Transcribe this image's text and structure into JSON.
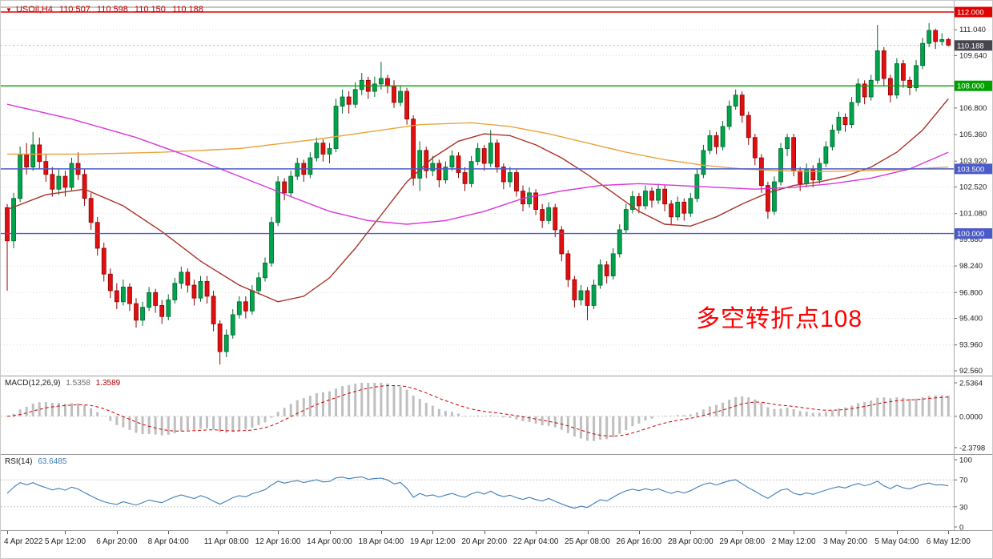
{
  "header": {
    "marker": "▼",
    "symbol": "USOil,H4",
    "open": "110.507",
    "high": "110.598",
    "low": "110.150",
    "close": "110.188",
    "text_color": "#c00000"
  },
  "annotation": {
    "text": "多空转折点108",
    "color": "#ff0000"
  },
  "panels": {
    "macd": {
      "title": "MACD(12,26,9)",
      "value": "1.5358",
      "signal_value": "1.3589",
      "scale": {
        "max": "2.5364",
        "zero": "0.0000",
        "min": "-2.3798"
      }
    },
    "rsi": {
      "title": "RSI(14)",
      "value": "63.6485",
      "levels": [
        "100",
        "70",
        "30",
        "0"
      ]
    }
  },
  "chart_data": {
    "type": "candlestick",
    "symbol": "USOil",
    "timeframe": "H4",
    "title": "USOil H4 candlestick chart with MACD and RSI",
    "price_axis": {
      "min": 92.56,
      "max": 112.0,
      "ticks": [
        "111.040",
        "109.640",
        "106.800",
        "105.360",
        "103.920",
        "102.520",
        "101.080",
        "99.680",
        "98.240",
        "96.800",
        "95.400",
        "93.960",
        "92.560"
      ]
    },
    "hlines": [
      {
        "price": 112.0,
        "label": "112.000",
        "color": "#E00000"
      },
      {
        "price": 108.0,
        "label": "108.000",
        "color": "#00A000"
      },
      {
        "price": 103.5,
        "label": "103.500",
        "color": "#4A5AC8"
      },
      {
        "price": 100.0,
        "label": "100.000",
        "color": "#4A5AC8"
      }
    ],
    "current_price": {
      "value": 110.188,
      "label": "110.188",
      "badge_color": "#46464E"
    },
    "colors": {
      "up": "#00A44A",
      "up_border": "#00662E",
      "down": "#E01010",
      "down_border": "#8F0000",
      "macd_hist": "#BFBFBF",
      "macd_signal": "#CC0000",
      "rsi_line": "#3E7DB8",
      "grid": "#DCDCDC"
    },
    "candles": [
      [
        101.4,
        101.6,
        96.9,
        99.6
      ],
      [
        99.6,
        102.2,
        99.2,
        101.9
      ],
      [
        101.9,
        104.7,
        101.7,
        104.3
      ],
      [
        104.3,
        104.9,
        103.2,
        103.6
      ],
      [
        103.6,
        105.5,
        103.4,
        104.8
      ],
      [
        104.8,
        105.2,
        103.5,
        103.9
      ],
      [
        103.9,
        104.3,
        102.8,
        103.2
      ],
      [
        103.2,
        103.6,
        102.0,
        102.4
      ],
      [
        102.4,
        103.5,
        102.1,
        103.1
      ],
      [
        103.1,
        103.4,
        102.0,
        102.5
      ],
      [
        102.5,
        104.1,
        102.3,
        103.8
      ],
      [
        103.8,
        104.4,
        102.9,
        103.2
      ],
      [
        103.2,
        103.5,
        101.5,
        101.9
      ],
      [
        101.9,
        102.2,
        100.2,
        100.6
      ],
      [
        100.6,
        100.9,
        98.8,
        99.2
      ],
      [
        99.2,
        99.5,
        97.4,
        97.8
      ],
      [
        97.8,
        98.1,
        96.5,
        96.9
      ],
      [
        96.9,
        97.3,
        95.9,
        96.3
      ],
      [
        96.3,
        97.5,
        96.1,
        97.1
      ],
      [
        97.1,
        97.3,
        95.8,
        96.2
      ],
      [
        96.2,
        96.5,
        94.9,
        95.3
      ],
      [
        95.3,
        96.3,
        95.0,
        96.0
      ],
      [
        96.0,
        97.1,
        95.8,
        96.8
      ],
      [
        96.8,
        97.0,
        95.7,
        96.1
      ],
      [
        96.1,
        96.4,
        95.1,
        95.5
      ],
      [
        95.5,
        96.7,
        95.3,
        96.4
      ],
      [
        96.4,
        97.6,
        96.2,
        97.3
      ],
      [
        97.3,
        98.2,
        97.0,
        97.9
      ],
      [
        97.9,
        98.1,
        96.8,
        97.2
      ],
      [
        97.2,
        97.5,
        96.1,
        96.5
      ],
      [
        96.5,
        97.7,
        96.3,
        97.4
      ],
      [
        97.4,
        97.7,
        96.2,
        96.6
      ],
      [
        96.6,
        96.9,
        94.7,
        95.1
      ],
      [
        95.1,
        95.3,
        92.9,
        93.6
      ],
      [
        93.6,
        94.8,
        93.3,
        94.5
      ],
      [
        94.5,
        95.9,
        94.3,
        95.6
      ],
      [
        95.6,
        96.6,
        95.4,
        96.3
      ],
      [
        96.3,
        96.6,
        95.4,
        95.8
      ],
      [
        95.8,
        97.2,
        95.6,
        96.9
      ],
      [
        96.9,
        97.9,
        96.7,
        97.6
      ],
      [
        97.6,
        98.7,
        97.4,
        98.4
      ],
      [
        98.4,
        100.9,
        98.2,
        100.6
      ],
      [
        100.6,
        103.1,
        100.4,
        102.8
      ],
      [
        102.8,
        103.0,
        101.8,
        102.2
      ],
      [
        102.2,
        103.4,
        102.0,
        103.1
      ],
      [
        103.1,
        104.1,
        102.9,
        103.8
      ],
      [
        103.8,
        104.0,
        102.8,
        103.2
      ],
      [
        103.2,
        104.4,
        103.0,
        104.1
      ],
      [
        104.1,
        105.2,
        103.9,
        104.9
      ],
      [
        104.9,
        105.1,
        103.9,
        104.3
      ],
      [
        104.3,
        104.9,
        103.8,
        104.6
      ],
      [
        104.6,
        107.3,
        104.4,
        106.9
      ],
      [
        106.9,
        107.8,
        106.5,
        107.4
      ],
      [
        107.4,
        107.7,
        106.5,
        107.0
      ],
      [
        107.0,
        108.2,
        106.8,
        107.8
      ],
      [
        107.8,
        108.7,
        107.5,
        108.3
      ],
      [
        108.3,
        108.5,
        107.3,
        107.7
      ],
      [
        107.7,
        108.5,
        107.4,
        108.1
      ],
      [
        108.1,
        109.3,
        107.8,
        108.4
      ],
      [
        108.4,
        108.6,
        107.6,
        108.0
      ],
      [
        108.0,
        108.3,
        106.8,
        107.1
      ],
      [
        107.1,
        108.0,
        106.9,
        107.7
      ],
      [
        107.7,
        107.9,
        105.9,
        106.2
      ],
      [
        106.2,
        106.4,
        102.6,
        103.0
      ],
      [
        103.0,
        105.0,
        102.3,
        104.5
      ],
      [
        104.5,
        104.7,
        103.0,
        103.4
      ],
      [
        103.4,
        104.2,
        103.1,
        103.8
      ],
      [
        103.8,
        104.0,
        102.5,
        102.9
      ],
      [
        102.9,
        103.9,
        102.7,
        103.6
      ],
      [
        103.6,
        104.5,
        103.4,
        104.2
      ],
      [
        104.2,
        104.4,
        103.0,
        103.3
      ],
      [
        103.3,
        103.6,
        102.3,
        102.7
      ],
      [
        102.7,
        104.2,
        102.5,
        103.9
      ],
      [
        103.9,
        104.9,
        103.7,
        104.6
      ],
      [
        104.6,
        104.8,
        103.4,
        103.8
      ],
      [
        103.8,
        105.6,
        103.6,
        104.9
      ],
      [
        104.9,
        105.1,
        103.3,
        103.6
      ],
      [
        103.6,
        103.8,
        102.4,
        102.8
      ],
      [
        102.8,
        103.6,
        102.5,
        103.3
      ],
      [
        103.3,
        103.5,
        102.0,
        102.3
      ],
      [
        102.3,
        102.6,
        101.2,
        101.6
      ],
      [
        101.6,
        102.5,
        101.4,
        102.2
      ],
      [
        102.2,
        102.4,
        101.0,
        101.3
      ],
      [
        101.3,
        101.6,
        100.3,
        100.7
      ],
      [
        100.7,
        101.7,
        100.5,
        101.4
      ],
      [
        101.4,
        101.6,
        99.8,
        100.2
      ],
      [
        100.2,
        100.4,
        98.5,
        98.9
      ],
      [
        98.9,
        99.1,
        97.1,
        97.5
      ],
      [
        97.5,
        97.7,
        96.0,
        96.4
      ],
      [
        96.4,
        97.2,
        96.1,
        96.9
      ],
      [
        96.9,
        97.1,
        95.3,
        96.1
      ],
      [
        96.1,
        97.5,
        95.9,
        97.2
      ],
      [
        97.2,
        98.6,
        97.0,
        98.3
      ],
      [
        98.3,
        98.5,
        97.3,
        97.7
      ],
      [
        97.7,
        99.2,
        97.5,
        98.9
      ],
      [
        98.9,
        100.5,
        98.7,
        100.2
      ],
      [
        100.2,
        101.6,
        100.0,
        101.3
      ],
      [
        101.3,
        102.3,
        101.1,
        102.0
      ],
      [
        102.0,
        102.2,
        101.1,
        101.5
      ],
      [
        101.5,
        102.6,
        101.3,
        102.3
      ],
      [
        102.3,
        102.5,
        101.4,
        101.8
      ],
      [
        101.8,
        102.7,
        101.6,
        102.4
      ],
      [
        102.4,
        102.6,
        101.2,
        101.6
      ],
      [
        101.6,
        101.8,
        100.5,
        100.9
      ],
      [
        100.9,
        102.0,
        100.7,
        101.7
      ],
      [
        101.7,
        101.9,
        100.7,
        101.1
      ],
      [
        101.1,
        102.2,
        100.9,
        101.9
      ],
      [
        101.9,
        103.5,
        101.7,
        103.2
      ],
      [
        103.2,
        104.8,
        103.0,
        104.5
      ],
      [
        104.5,
        105.6,
        104.3,
        105.3
      ],
      [
        105.3,
        105.5,
        104.3,
        104.7
      ],
      [
        104.7,
        106.1,
        104.5,
        105.8
      ],
      [
        105.8,
        107.2,
        105.6,
        106.9
      ],
      [
        106.9,
        107.8,
        106.7,
        107.5
      ],
      [
        107.5,
        107.7,
        106.0,
        106.4
      ],
      [
        106.4,
        106.6,
        104.8,
        105.2
      ],
      [
        105.2,
        105.4,
        103.7,
        104.1
      ],
      [
        104.1,
        104.3,
        102.2,
        102.6
      ],
      [
        102.6,
        102.8,
        100.8,
        101.2
      ],
      [
        101.2,
        103.1,
        101.0,
        102.8
      ],
      [
        102.8,
        104.9,
        102.6,
        104.6
      ],
      [
        104.6,
        105.4,
        104.2,
        105.2
      ],
      [
        105.2,
        105.4,
        103.1,
        103.4
      ],
      [
        103.4,
        103.6,
        102.3,
        102.7
      ],
      [
        102.7,
        103.8,
        102.5,
        103.5
      ],
      [
        103.5,
        103.7,
        102.5,
        102.9
      ],
      [
        102.9,
        104.1,
        102.7,
        103.8
      ],
      [
        103.8,
        105.0,
        103.6,
        104.7
      ],
      [
        104.7,
        105.9,
        104.5,
        105.6
      ],
      [
        105.6,
        106.6,
        105.4,
        106.3
      ],
      [
        106.3,
        106.5,
        105.5,
        105.9
      ],
      [
        105.9,
        107.4,
        105.7,
        107.1
      ],
      [
        107.1,
        108.4,
        106.9,
        108.1
      ],
      [
        108.1,
        108.3,
        107.0,
        107.4
      ],
      [
        107.4,
        108.6,
        107.2,
        108.3
      ],
      [
        108.3,
        111.3,
        108.1,
        109.9
      ],
      [
        109.9,
        110.1,
        108.0,
        108.4
      ],
      [
        108.4,
        108.6,
        107.1,
        107.5
      ],
      [
        107.5,
        109.5,
        107.3,
        109.2
      ],
      [
        109.2,
        109.4,
        107.9,
        108.3
      ],
      [
        108.3,
        108.5,
        107.5,
        107.9
      ],
      [
        107.9,
        109.4,
        107.7,
        109.1
      ],
      [
        109.1,
        110.6,
        108.9,
        110.3
      ],
      [
        110.3,
        111.4,
        110.1,
        111.0
      ],
      [
        111.0,
        111.1,
        110.0,
        110.4
      ],
      [
        110.4,
        110.85,
        110.2,
        110.51
      ],
      [
        110.51,
        110.6,
        110.15,
        110.19
      ]
    ],
    "overlays": [
      {
        "name": "ma-medium-darkred",
        "color": "#A93226",
        "points": [
          [
            0,
            101.3
          ],
          [
            6,
            102.1
          ],
          [
            12,
            102.4
          ],
          [
            18,
            101.5
          ],
          [
            24,
            100.1
          ],
          [
            30,
            98.5
          ],
          [
            36,
            97.2
          ],
          [
            42,
            96.3
          ],
          [
            46,
            96.6
          ],
          [
            50,
            97.6
          ],
          [
            54,
            99.2
          ],
          [
            58,
            101.0
          ],
          [
            62,
            102.8
          ],
          [
            66,
            104.1
          ],
          [
            70,
            105.0
          ],
          [
            74,
            105.4
          ],
          [
            78,
            105.3
          ],
          [
            82,
            104.8
          ],
          [
            86,
            104.1
          ],
          [
            90,
            103.2
          ],
          [
            94,
            102.2
          ],
          [
            98,
            101.2
          ],
          [
            102,
            100.5
          ],
          [
            106,
            100.4
          ],
          [
            110,
            100.9
          ],
          [
            114,
            101.6
          ],
          [
            118,
            102.2
          ],
          [
            122,
            102.6
          ],
          [
            126,
            102.8
          ],
          [
            130,
            103.1
          ],
          [
            134,
            103.6
          ],
          [
            138,
            104.4
          ],
          [
            142,
            105.6
          ],
          [
            146,
            107.3
          ]
        ]
      },
      {
        "name": "ma-slow-orange",
        "color": "#E8A33D",
        "points": [
          [
            0,
            104.3
          ],
          [
            12,
            104.3
          ],
          [
            24,
            104.4
          ],
          [
            36,
            104.6
          ],
          [
            48,
            105.1
          ],
          [
            56,
            105.5
          ],
          [
            64,
            105.9
          ],
          [
            72,
            106.0
          ],
          [
            78,
            105.8
          ],
          [
            84,
            105.4
          ],
          [
            90,
            104.9
          ],
          [
            96,
            104.4
          ],
          [
            102,
            104.0
          ],
          [
            108,
            103.7
          ],
          [
            114,
            103.5
          ],
          [
            120,
            103.4
          ],
          [
            126,
            103.35
          ],
          [
            132,
            103.4
          ],
          [
            138,
            103.45
          ],
          [
            146,
            103.6
          ]
        ]
      },
      {
        "name": "ma-long-magenta",
        "color": "#D936D9",
        "points": [
          [
            0,
            107.0
          ],
          [
            10,
            106.2
          ],
          [
            20,
            105.2
          ],
          [
            28,
            104.2
          ],
          [
            36,
            103.1
          ],
          [
            44,
            102.0
          ],
          [
            50,
            101.2
          ],
          [
            56,
            100.7
          ],
          [
            62,
            100.5
          ],
          [
            68,
            100.7
          ],
          [
            74,
            101.2
          ],
          [
            80,
            101.9
          ],
          [
            86,
            102.3
          ],
          [
            92,
            102.6
          ],
          [
            98,
            102.7
          ],
          [
            104,
            102.6
          ],
          [
            110,
            102.5
          ],
          [
            116,
            102.4
          ],
          [
            122,
            102.5
          ],
          [
            128,
            102.7
          ],
          [
            134,
            103.0
          ],
          [
            140,
            103.5
          ],
          [
            146,
            104.4
          ]
        ]
      }
    ],
    "time_axis": {
      "labels": [
        {
          "text": "4 Apr 2022",
          "i": 0
        },
        {
          "text": "5 Apr 12:00",
          "i": 9
        },
        {
          "text": "6 Apr 20:00",
          "i": 17
        },
        {
          "text": "8 Apr 04:00",
          "i": 25
        },
        {
          "text": "11 Apr 08:00",
          "i": 34
        },
        {
          "text": "12 Apr 16:00",
          "i": 42
        },
        {
          "text": "14 Apr 00:00",
          "i": 50
        },
        {
          "text": "18 Apr 04:00",
          "i": 58
        },
        {
          "text": "19 Apr 12:00",
          "i": 66
        },
        {
          "text": "20 Apr 20:00",
          "i": 74
        },
        {
          "text": "22 Apr 04:00",
          "i": 82
        },
        {
          "text": "25 Apr 08:00",
          "i": 90
        },
        {
          "text": "26 Apr 16:00",
          "i": 98
        },
        {
          "text": "28 Apr 00:00",
          "i": 106
        },
        {
          "text": "29 Apr 08:00",
          "i": 114
        },
        {
          "text": "2 May 12:00",
          "i": 122
        },
        {
          "text": "3 May 20:00",
          "i": 130
        },
        {
          "text": "5 May 04:00",
          "i": 138
        },
        {
          "text": "6 May 12:00",
          "i": 146
        }
      ]
    }
  }
}
